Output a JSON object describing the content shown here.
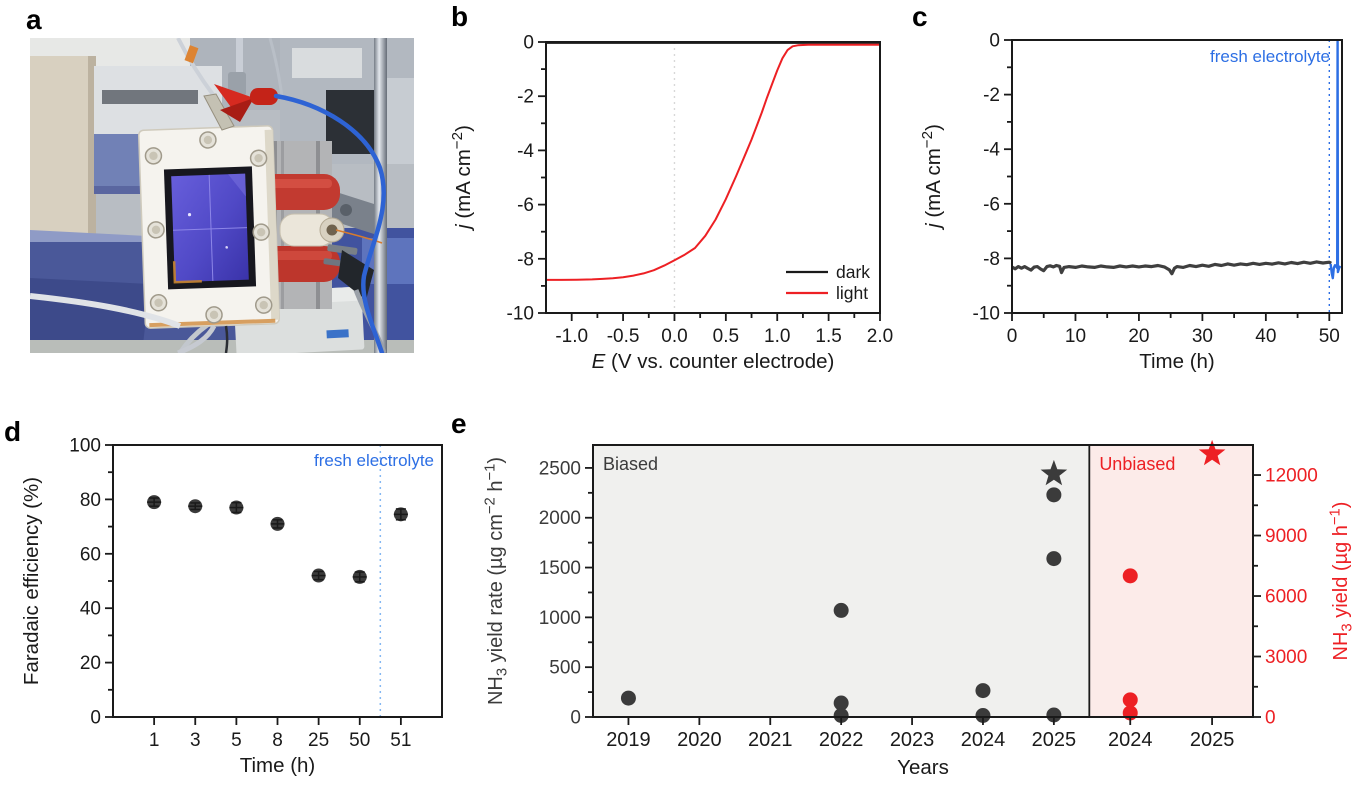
{
  "figure": {
    "panels": [
      {
        "id": "a",
        "letter": "a"
      },
      {
        "id": "b",
        "letter": "b"
      },
      {
        "id": "c",
        "letter": "c"
      },
      {
        "id": "d",
        "letter": "d"
      },
      {
        "id": "e",
        "letter": "e"
      }
    ]
  },
  "colors": {
    "black": "#1a1a1a",
    "dark_gray": "#3b3b3b",
    "red": "#ed2024",
    "blue": "#2d6fe4",
    "light_blue_dotted": "#85b8f2",
    "dotted_gray": "#d8d8d8",
    "biased_bg": "#f0f0ee",
    "unbiased_bg": "#fcebe9"
  },
  "chart_data": [
    {
      "id": "b",
      "type": "line",
      "xlabel": [
        {
          "t": "E",
          "i": 1
        },
        {
          "t": " (V vs. counter electrode)"
        }
      ],
      "ylabel": [
        {
          "t": "j",
          "i": 1
        },
        {
          "t": " (mA cm"
        },
        {
          "t": "−2",
          "s": 1
        },
        {
          "t": ")"
        }
      ],
      "xlim": [
        -1.25,
        2.0
      ],
      "ylim": [
        -10,
        0
      ],
      "xticks": [
        {
          "v": -1,
          "l": "-1.0"
        },
        {
          "v": -0.5,
          "l": "-0.5"
        },
        {
          "v": 0,
          "l": "0.0"
        },
        {
          "v": 0.5,
          "l": "0.5"
        },
        {
          "v": 1,
          "l": "1.0"
        },
        {
          "v": 1.5,
          "l": "1.5"
        },
        {
          "v": 2,
          "l": "2.0"
        }
      ],
      "xminor": [
        -0.75,
        -0.25,
        0.25,
        0.75,
        1.25,
        1.75
      ],
      "yticks": [
        {
          "v": 0,
          "l": "0"
        },
        {
          "v": -2,
          "l": "-2"
        },
        {
          "v": -4,
          "l": "-4"
        },
        {
          "v": -6,
          "l": "-6"
        },
        {
          "v": -8,
          "l": "-8"
        },
        {
          "v": -10,
          "l": "-10"
        }
      ],
      "yminor": [
        -1,
        -3,
        -5,
        -7,
        -9
      ],
      "vlines": [
        {
          "x": 0,
          "color": "#d8d8d8",
          "dash": "2 4"
        }
      ],
      "legend": {
        "items": [
          {
            "label": "dark",
            "color": "#1a1a1a"
          },
          {
            "label": "light",
            "color": "#ed2024"
          }
        ]
      },
      "series": [
        {
          "name": "dark",
          "color": "#1a1a1a",
          "w": 2.2,
          "points": [
            [
              -1.25,
              -0.03
            ],
            [
              2.0,
              -0.03
            ]
          ]
        },
        {
          "name": "light",
          "color": "#ed2024",
          "w": 2,
          "points": [
            [
              -1.25,
              -8.78
            ],
            [
              -1.1,
              -8.78
            ],
            [
              -0.95,
              -8.77
            ],
            [
              -0.8,
              -8.76
            ],
            [
              -0.7,
              -8.74
            ],
            [
              -0.6,
              -8.72
            ],
            [
              -0.5,
              -8.68
            ],
            [
              -0.4,
              -8.62
            ],
            [
              -0.3,
              -8.54
            ],
            [
              -0.2,
              -8.42
            ],
            [
              -0.1,
              -8.25
            ],
            [
              0,
              -8.05
            ],
            [
              0.1,
              -7.85
            ],
            [
              0.2,
              -7.6
            ],
            [
              0.3,
              -7.15
            ],
            [
              0.4,
              -6.55
            ],
            [
              0.5,
              -5.8
            ],
            [
              0.6,
              -4.95
            ],
            [
              0.65,
              -4.5
            ],
            [
              0.7,
              -4.05
            ],
            [
              0.75,
              -3.6
            ],
            [
              0.8,
              -3.1
            ],
            [
              0.85,
              -2.6
            ],
            [
              0.9,
              -2.05
            ],
            [
              0.95,
              -1.55
            ],
            [
              1,
              -1.05
            ],
            [
              1.05,
              -0.6
            ],
            [
              1.1,
              -0.3
            ],
            [
              1.15,
              -0.16
            ],
            [
              1.2,
              -0.12
            ],
            [
              1.3,
              -0.1
            ],
            [
              1.5,
              -0.1
            ],
            [
              1.75,
              -0.1
            ],
            [
              2,
              -0.1
            ]
          ]
        }
      ]
    },
    {
      "id": "c",
      "type": "line",
      "xlabel": [
        {
          "t": "Time (h)"
        }
      ],
      "ylabel": [
        {
          "t": "j",
          "i": 1
        },
        {
          "t": " (mA cm"
        },
        {
          "t": "−2",
          "s": 1
        },
        {
          "t": ")"
        }
      ],
      "xlim": [
        0,
        52
      ],
      "ylim": [
        -10,
        0
      ],
      "xticks": [
        {
          "v": 0,
          "l": "0"
        },
        {
          "v": 10,
          "l": "10"
        },
        {
          "v": 20,
          "l": "20"
        },
        {
          "v": 30,
          "l": "30"
        },
        {
          "v": 40,
          "l": "40"
        },
        {
          "v": 50,
          "l": "50"
        }
      ],
      "xminor": [
        5,
        15,
        25,
        35,
        45
      ],
      "yticks": [
        {
          "v": 0,
          "l": "0"
        },
        {
          "v": -2,
          "l": "-2"
        },
        {
          "v": -4,
          "l": "-4"
        },
        {
          "v": -6,
          "l": "-6"
        },
        {
          "v": -8,
          "l": "-8"
        },
        {
          "v": -10,
          "l": "-10"
        }
      ],
      "yminor": [
        -1,
        -3,
        -5,
        -7,
        -9
      ],
      "vlines": [
        {
          "x": 50,
          "color": "#2d6fe4",
          "dash": "2 4"
        }
      ],
      "annotation": {
        "text": "fresh electrolyte",
        "color": "#2d6fe4"
      },
      "series": [
        {
          "name": "photocurrent",
          "color": "#3f3f3f",
          "w": 3.2,
          "points": [
            [
              0,
              -8.32
            ],
            [
              0.5,
              -8.38
            ],
            [
              1,
              -8.3
            ],
            [
              1.5,
              -8.36
            ],
            [
              2,
              -8.3
            ],
            [
              2.5,
              -8.37
            ],
            [
              3,
              -8.43
            ],
            [
              3.5,
              -8.32
            ],
            [
              4,
              -8.3
            ],
            [
              4.5,
              -8.39
            ],
            [
              5,
              -8.45
            ],
            [
              5.5,
              -8.3
            ],
            [
              6,
              -8.27
            ],
            [
              6.5,
              -8.31
            ],
            [
              7,
              -8.26
            ],
            [
              7.5,
              -8.29
            ],
            [
              7.8,
              -8.52
            ],
            [
              8.2,
              -8.33
            ],
            [
              9,
              -8.3
            ],
            [
              10,
              -8.33
            ],
            [
              11,
              -8.28
            ],
            [
              12,
              -8.31
            ],
            [
              13,
              -8.33
            ],
            [
              14,
              -8.28
            ],
            [
              15,
              -8.31
            ],
            [
              16,
              -8.33
            ],
            [
              17,
              -8.28
            ],
            [
              18,
              -8.31
            ],
            [
              19,
              -8.28
            ],
            [
              20,
              -8.31
            ],
            [
              21,
              -8.28
            ],
            [
              22,
              -8.3
            ],
            [
              23,
              -8.26
            ],
            [
              24,
              -8.31
            ],
            [
              24.8,
              -8.42
            ],
            [
              25.2,
              -8.56
            ],
            [
              25.6,
              -8.36
            ],
            [
              26,
              -8.3
            ],
            [
              27,
              -8.33
            ],
            [
              28,
              -8.26
            ],
            [
              29,
              -8.3
            ],
            [
              30,
              -8.25
            ],
            [
              31,
              -8.29
            ],
            [
              32,
              -8.22
            ],
            [
              33,
              -8.26
            ],
            [
              34,
              -8.2
            ],
            [
              35,
              -8.25
            ],
            [
              36,
              -8.2
            ],
            [
              37,
              -8.23
            ],
            [
              38,
              -8.18
            ],
            [
              39,
              -8.22
            ],
            [
              40,
              -8.18
            ],
            [
              41,
              -8.21
            ],
            [
              42,
              -8.16
            ],
            [
              43,
              -8.2
            ],
            [
              44,
              -8.15
            ],
            [
              45,
              -8.19
            ],
            [
              46,
              -8.14
            ],
            [
              47,
              -8.18
            ],
            [
              48,
              -8.13
            ],
            [
              49,
              -8.17
            ],
            [
              50,
              -8.14
            ],
            [
              50.3,
              -8.18
            ]
          ]
        },
        {
          "name": "fresh electrolyte transient",
          "color": "#2d6fe4",
          "w": 2.4,
          "points": [
            [
              50.2,
              -8.2
            ],
            [
              50.4,
              -8.55
            ],
            [
              50.55,
              -8.72
            ],
            [
              50.7,
              -8.35
            ],
            [
              50.9,
              -8.25
            ],
            [
              51.1,
              -8.3
            ],
            [
              51.25,
              -8.35
            ],
            [
              51.3,
              -0.05
            ],
            [
              51.35,
              -8.5
            ],
            [
              51.55,
              -8.35
            ],
            [
              51.75,
              -8.28
            ]
          ]
        }
      ]
    },
    {
      "id": "d",
      "type": "cat-scatter",
      "xlabel": [
        {
          "t": "Time (h)"
        }
      ],
      "ylabel": [
        {
          "t": "Faradaic efficiency (%)"
        }
      ],
      "categories": [
        "1",
        "3",
        "5",
        "8",
        "25",
        "50",
        "51"
      ],
      "values": [
        79,
        77.5,
        77,
        71,
        52,
        51.5,
        74.5
      ],
      "errors": [
        1.5,
        1.2,
        1.8,
        1.5,
        1.5,
        1.8,
        2.0
      ],
      "ylim": [
        0,
        100
      ],
      "yticks": [
        {
          "v": 0,
          "l": "0"
        },
        {
          "v": 20,
          "l": "20"
        },
        {
          "v": 40,
          "l": "40"
        },
        {
          "v": 60,
          "l": "60"
        },
        {
          "v": 80,
          "l": "80"
        },
        {
          "v": 100,
          "l": "100"
        }
      ],
      "yminor": [
        10,
        30,
        50,
        70,
        90
      ],
      "marker": {
        "color": "#3b3b3b",
        "r": 7
      },
      "vline_after_index": 5,
      "vline_color": "#85b8f2",
      "annotation": {
        "text": "fresh electrolyte",
        "color": "#2d6fe4"
      }
    },
    {
      "id": "e",
      "type": "dual-region-scatter",
      "xlabel": [
        {
          "t": "Years"
        }
      ],
      "left_axis": {
        "label": [
          {
            "t": "NH"
          },
          {
            "t": "3",
            "b": 1
          },
          {
            "t": " yield rate (µg cm"
          },
          {
            "t": "−2",
            "s": 1
          },
          {
            "t": " h"
          },
          {
            "t": "−1",
            "s": 1
          },
          {
            "t": ")"
          }
        ],
        "lim": [
          0,
          2730
        ],
        "ticks": [
          {
            "v": 0,
            "l": "0"
          },
          {
            "v": 500,
            "l": "500"
          },
          {
            "v": 1000,
            "l": "1000"
          },
          {
            "v": 1500,
            "l": "1500"
          },
          {
            "v": 2000,
            "l": "2000"
          },
          {
            "v": 2500,
            "l": "2500"
          }
        ],
        "minor": [
          250,
          750,
          1250,
          1750,
          2250
        ],
        "color": "#3b3b3b"
      },
      "right_axis": {
        "label": [
          {
            "t": "NH"
          },
          {
            "t": "3",
            "b": 1
          },
          {
            "t": " yield (µg h"
          },
          {
            "t": "−1",
            "s": 1
          },
          {
            "t": ")"
          }
        ],
        "lim": [
          0,
          13490
        ],
        "ticks": [
          {
            "v": 0,
            "l": "0"
          },
          {
            "v": 3000,
            "l": "3000"
          },
          {
            "v": 6000,
            "l": "6000"
          },
          {
            "v": 9000,
            "l": "9000"
          },
          {
            "v": 12000,
            "l": "12000"
          }
        ],
        "minor": [
          1500,
          4500,
          7500,
          10500
        ],
        "color": "#ed2024"
      },
      "regions": [
        {
          "label": "Biased",
          "label_color": "#3b3b3b",
          "bg": "#f0f0ee",
          "axis": "left",
          "marker_color": "#3b3b3b",
          "categories": [
            "2019",
            "2020",
            "2021",
            "2022",
            "2023",
            "2024",
            "2025"
          ],
          "points": [
            {
              "cat": "2019",
              "v": 190
            },
            {
              "cat": "2022",
              "v": 1070
            },
            {
              "cat": "2022",
              "v": 140
            },
            {
              "cat": "2022",
              "v": 15
            },
            {
              "cat": "2024",
              "v": 265
            },
            {
              "cat": "2024",
              "v": 15
            },
            {
              "cat": "2025",
              "v": 2230
            },
            {
              "cat": "2025",
              "v": 1590
            },
            {
              "cat": "2025",
              "v": 20
            }
          ],
          "stars": [
            {
              "cat": "2025",
              "v": 2440
            }
          ]
        },
        {
          "label": "Unbiased",
          "label_color": "#ed2024",
          "bg": "#fcebe9",
          "axis": "right",
          "marker_color": "#ed2024",
          "categories": [
            "2024",
            "2025"
          ],
          "points": [
            {
              "cat": "2024",
              "v": 7000
            },
            {
              "cat": "2024",
              "v": 850
            },
            {
              "cat": "2024",
              "v": 200
            }
          ],
          "stars": [
            {
              "cat": "2025",
              "v": 13050
            }
          ]
        }
      ]
    }
  ]
}
